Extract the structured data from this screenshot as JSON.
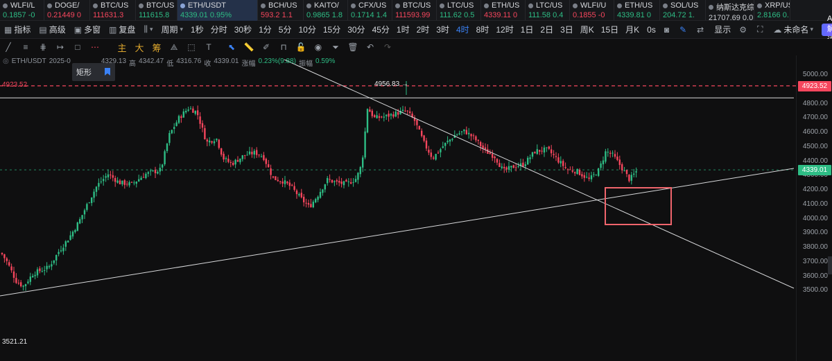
{
  "tickers": [
    {
      "name": "WLFI/L",
      "quote": "0.1857 -0",
      "dir": "up"
    },
    {
      "name": "DOGE/",
      "quote": "0.21449 0",
      "dir": "down"
    },
    {
      "name": "BTC/US",
      "quote": "111631.3",
      "dir": "down"
    },
    {
      "name": "BTC/US",
      "quote": "111615.8",
      "dir": "up"
    },
    {
      "name": "ETH/USDT",
      "quote": "4339.01 0.95%",
      "dir": "up"
    },
    {
      "name": "BCH/US",
      "quote": "593.2 1.1",
      "dir": "down"
    },
    {
      "name": "KAITO/",
      "quote": "0.9865 1.8",
      "dir": "up"
    },
    {
      "name": "CFX/US",
      "quote": "0.1714 1.4",
      "dir": "up"
    },
    {
      "name": "BTC/US",
      "quote": "111593.99",
      "dir": "down"
    },
    {
      "name": "LTC/US",
      "quote": "111.62 0.5",
      "dir": "up"
    },
    {
      "name": "ETH/US",
      "quote": "4339.11 0",
      "dir": "down"
    },
    {
      "name": "LTC/US",
      "quote": "111.58 0.4",
      "dir": "up"
    },
    {
      "name": "WLFI/U",
      "quote": "0.1855 -0",
      "dir": "down"
    },
    {
      "name": "ETH/US",
      "quote": "4339.81 0",
      "dir": "up"
    },
    {
      "name": "SOL/US",
      "quote": "204.72 1.",
      "dir": "up"
    },
    {
      "name": "纳斯达克综合",
      "quote": "21707.69 0.0",
      "dir": "neutral"
    },
    {
      "name": "XRP/US",
      "quote": "2.8166 0.",
      "dir": "up"
    }
  ],
  "toolbar": {
    "indicators": "指标",
    "advanced": "高级",
    "multi_window": "多窗",
    "replay": "复盘",
    "period": "周期",
    "timeframes": [
      "1秒",
      "分时",
      "30秒",
      "1分",
      "5分",
      "10分",
      "15分",
      "30分",
      "45分",
      "1时",
      "2时",
      "3时",
      "4时",
      "8时",
      "12时",
      "1日",
      "2日",
      "3日",
      "周K",
      "15日",
      "月K"
    ],
    "active_timeframe": "4时",
    "countdown": "0s",
    "display": "显示",
    "layout_name": "未命名",
    "ai_button": "AI解读"
  },
  "drawing_tools": {
    "icons": [
      "trendline-icon",
      "hline-icon",
      "parallel-icon",
      "ray-icon",
      "rect-icon",
      "more-dots-icon"
    ],
    "cn_tools": [
      "主",
      "大",
      "筹"
    ]
  },
  "info_line": {
    "symbol": "ETH/USDT",
    "date": "2025-0",
    "open_partial": "4329.13",
    "high_label": "高",
    "high": "4342.47",
    "low_label": "低",
    "low": "4316.76",
    "close_label": "收",
    "close": "4339.01",
    "change_label": "涨幅",
    "change": "0.23%(9.88)",
    "amplitude_label": "振幅",
    "amplitude": "0.59%"
  },
  "tooltip": {
    "label": "矩形"
  },
  "price_axis": {
    "ticks": [
      "5000.00",
      "4900.00",
      "4800.00",
      "4700.00",
      "4600.00",
      "4500.00",
      "4400.00",
      "4300.00",
      "4200.00",
      "4100.00",
      "4000.00",
      "3900.00",
      "3800.00",
      "3700.00",
      "3600.00",
      "3500.00"
    ],
    "alert_price": "4923.52",
    "last_price": "4339.01",
    "alert_color": "#f6465d",
    "last_color": "#2ebd85"
  },
  "chart_data": {
    "type": "candlestick",
    "symbol": "ETH/USDT",
    "interval": "4时",
    "ylim": [
      3480,
      5050
    ],
    "highest": 4956.83,
    "lowest": 3521.21,
    "alert_level": 4923.52,
    "last_price": 4339.01,
    "resistance_line": 4840
  }
}
